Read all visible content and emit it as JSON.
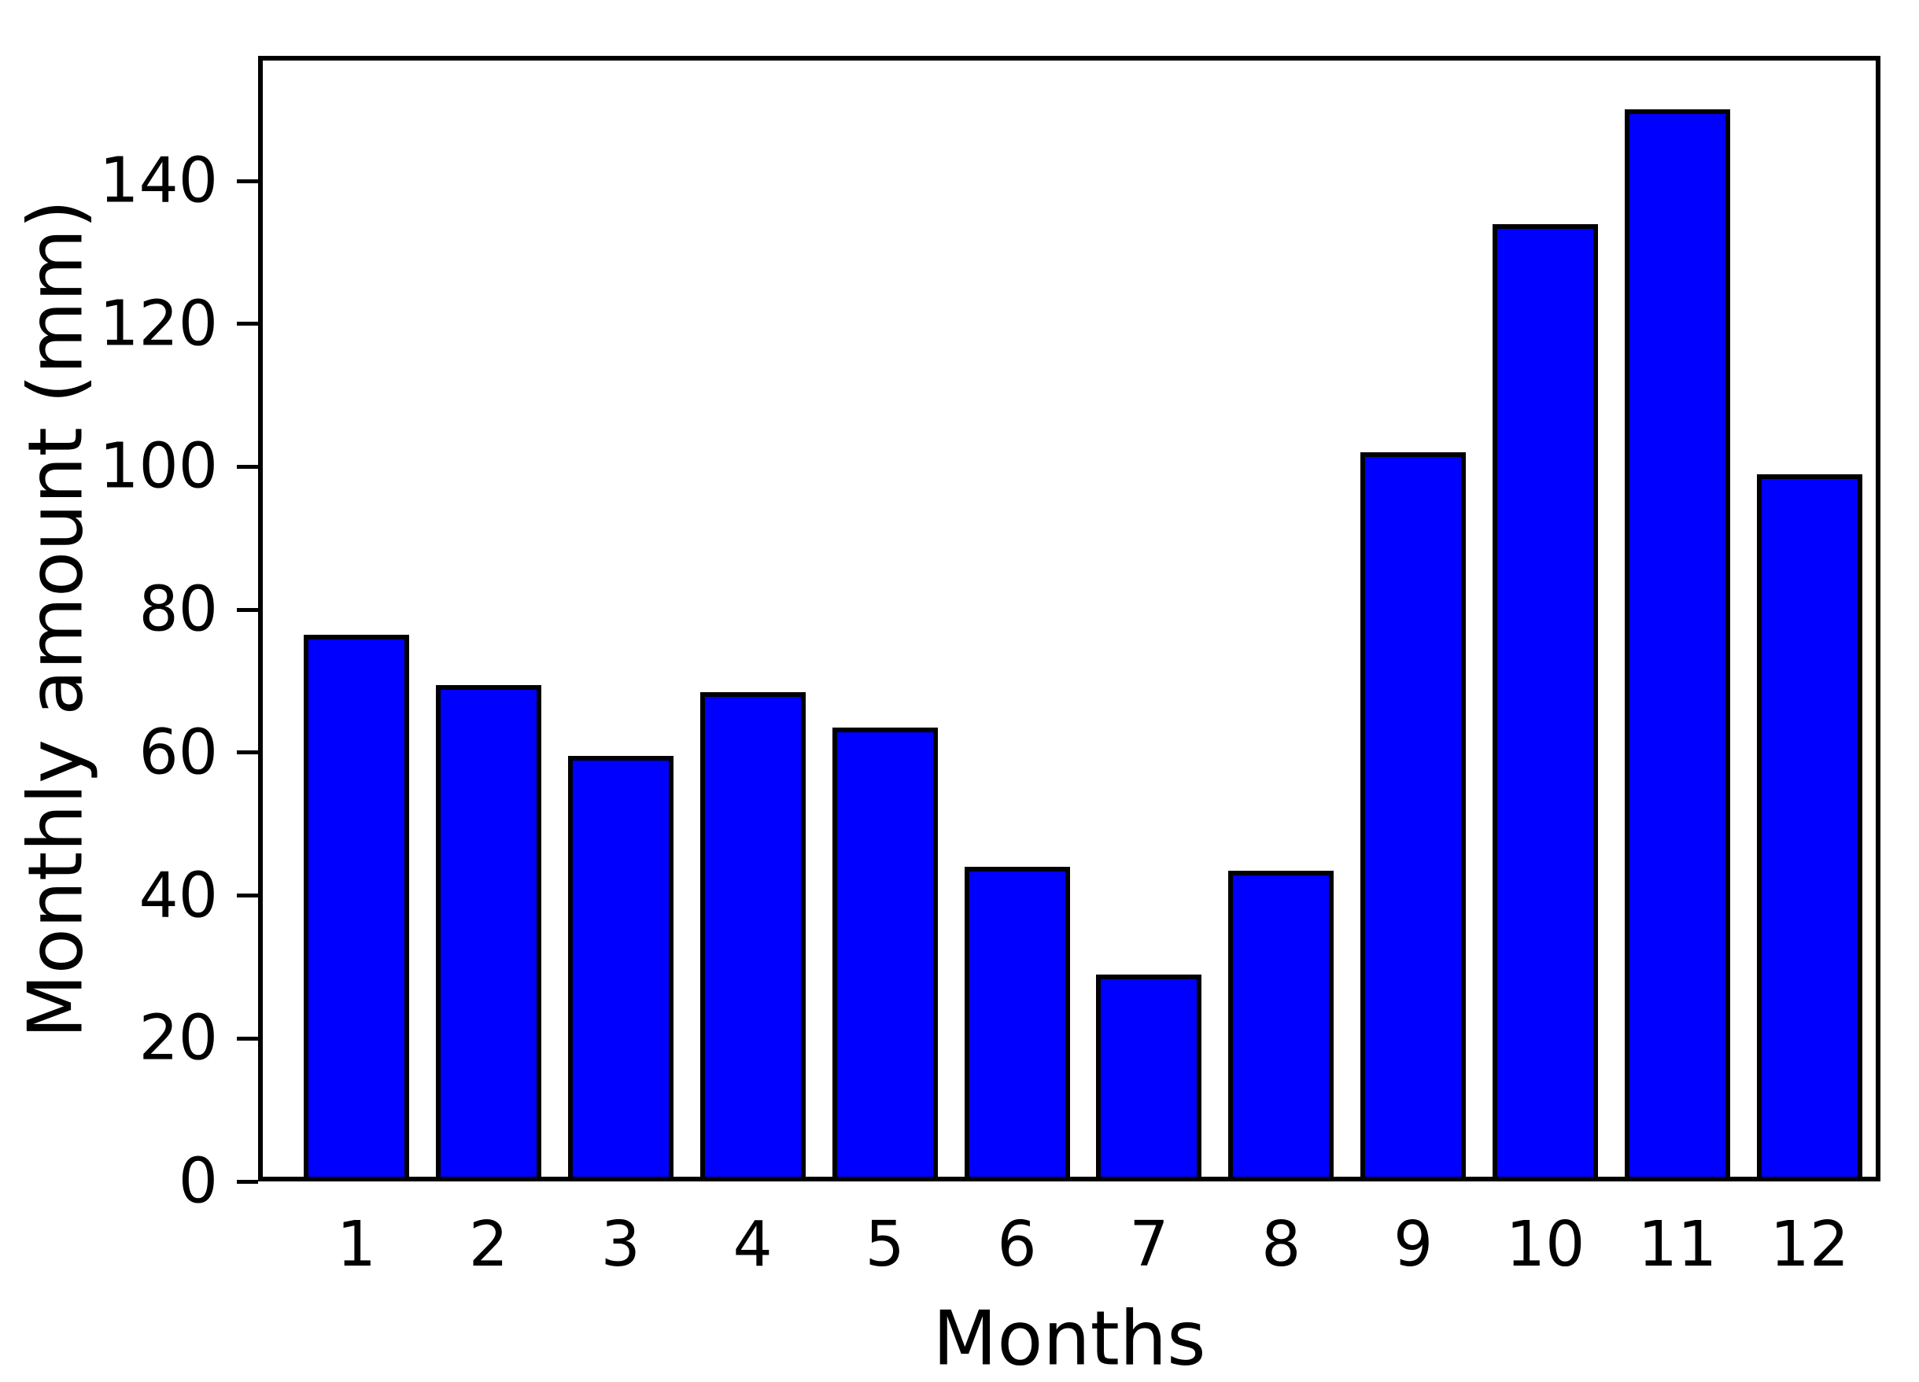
{
  "chart_data": {
    "type": "bar",
    "title": "",
    "xlabel": "Months",
    "ylabel": "Monthly amount (mm)",
    "categories": [
      "1",
      "2",
      "3",
      "4",
      "5",
      "6",
      "7",
      "8",
      "9",
      "10",
      "11",
      "12"
    ],
    "values": [
      76.5,
      69.5,
      59.5,
      68.5,
      63.5,
      44,
      29,
      43.5,
      102,
      134,
      150,
      99
    ],
    "yticks": [
      0,
      20,
      40,
      60,
      80,
      100,
      120,
      140
    ],
    "ylim": [
      0,
      157.5
    ],
    "xlim": [
      0.26,
      12.53
    ],
    "bar_color": "#0000ff",
    "bar_edge_color": "#000000",
    "axis_color": "#000000",
    "text_color": "#000000",
    "background_color": "#ffffff",
    "grid": false,
    "legend": null
  }
}
